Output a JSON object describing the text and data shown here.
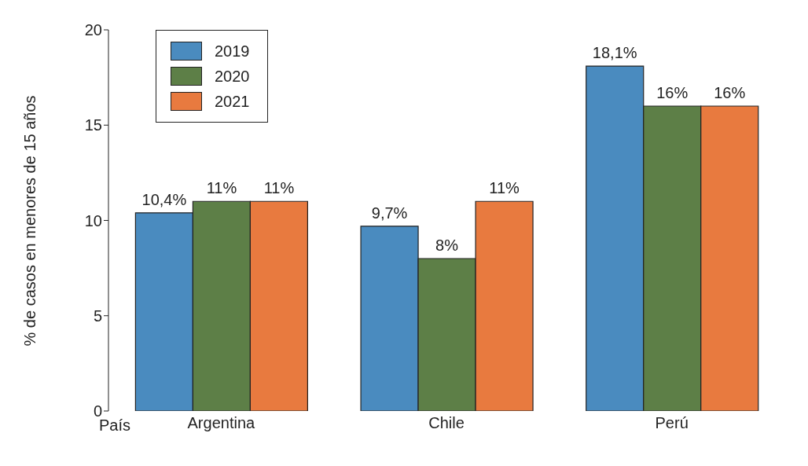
{
  "chart_data": {
    "type": "bar",
    "ylabel": "% de casos en menores de 15 años",
    "categories": [
      "Argentina",
      "Chile",
      "Perú"
    ],
    "series": [
      {
        "name": "2019",
        "color": "#4a8bbf",
        "values": [
          10.4,
          9.7,
          18.1
        ],
        "value_labels": [
          "10,4%",
          "9,7%",
          "18,1%"
        ]
      },
      {
        "name": "2020",
        "color": "#5d7f47",
        "values": [
          11,
          8,
          16
        ],
        "value_labels": [
          "11%",
          "8%",
          "16%"
        ]
      },
      {
        "name": "2021",
        "color": "#e87a3f",
        "values": [
          11,
          11,
          16
        ],
        "value_labels": [
          "11%",
          "11%",
          "16%"
        ]
      }
    ],
    "ylim": [
      0,
      20
    ],
    "yticks": [
      0,
      5,
      10,
      15,
      20
    ],
    "grid": false,
    "legend": "top left",
    "annotations": [
      "País"
    ]
  }
}
